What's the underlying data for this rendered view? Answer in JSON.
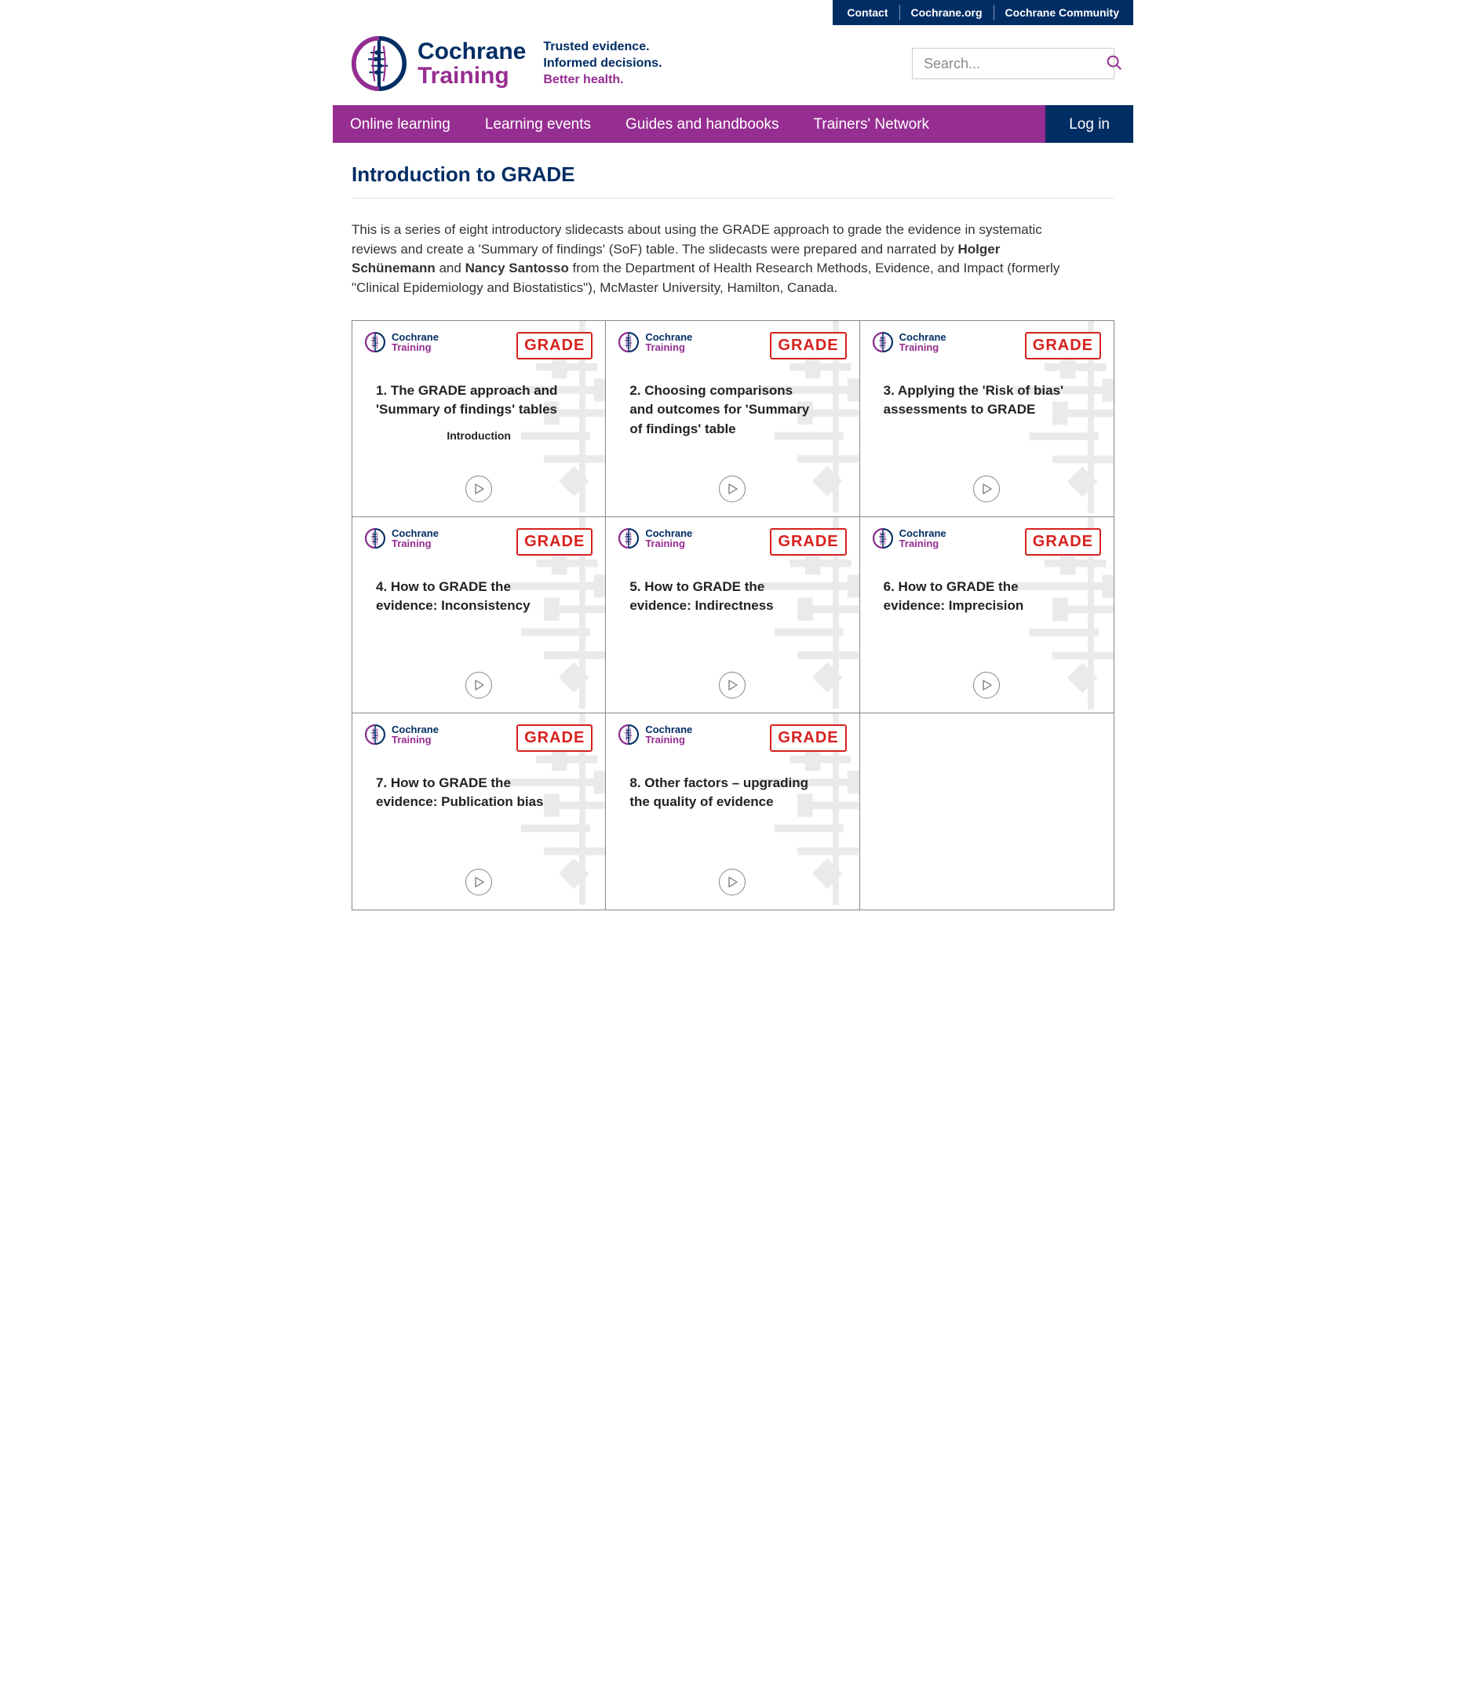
{
  "colors": {
    "navy": "#002d64",
    "purple": "#962d91",
    "red": "#d8201d",
    "grey": "#999",
    "lightgrey": "#e5e5e5",
    "bg_grey": "#eaeaea",
    "white": "#ffffff"
  },
  "topbar": {
    "links": [
      "Contact",
      "Cochrane.org",
      "Cochrane Community"
    ]
  },
  "brand": {
    "name_line1": "Cochrane",
    "name_line2": "Training",
    "tagline_line1": "Trusted evidence.",
    "tagline_line2": "Informed decisions.",
    "tagline_line3": "Better health."
  },
  "search": {
    "placeholder": "Search..."
  },
  "nav": {
    "items": [
      "Online learning",
      "Learning events",
      "Guides and handbooks",
      "Trainers' Network"
    ],
    "login": "Log in"
  },
  "page": {
    "title": "Introduction to GRADE",
    "intro_pre": "This is a series of eight introductory slidecasts about using the GRADE approach to grade the evidence in systematic reviews and create a 'Summary of findings' (SoF) table. The slidecasts were prepared and narrated by ",
    "author1": "Holger Schünemann",
    "mid": " and ",
    "author2": "Nancy Santosso",
    "intro_post": " from the Department of Health Research Methods, Evidence, and Impact (formerly \"Clinical Epidemiology and Biostatistics\"), McMaster University, Hamilton, Canada."
  },
  "card_common": {
    "mini_line1": "Cochrane",
    "mini_line2": "Training",
    "badge": "GRADE"
  },
  "cards": [
    {
      "title": "1. The GRADE approach and 'Summary of findings' tables",
      "subtitle": "Introduction"
    },
    {
      "title": "2. Choosing comparisons and outcomes for 'Summary of findings' table",
      "subtitle": ""
    },
    {
      "title": "3. Applying the 'Risk of bias' assessments to GRADE",
      "subtitle": ""
    },
    {
      "title": "4. How to GRADE the evidence: Inconsistency",
      "subtitle": ""
    },
    {
      "title": "5. How to GRADE the evidence: Indirectness",
      "subtitle": ""
    },
    {
      "title": "6. How to GRADE the evidence: Imprecision",
      "subtitle": ""
    },
    {
      "title": "7. How to GRADE the evidence: Publication bias",
      "subtitle": ""
    },
    {
      "title": "8. Other factors – upgrading the quality of evidence",
      "subtitle": ""
    }
  ]
}
